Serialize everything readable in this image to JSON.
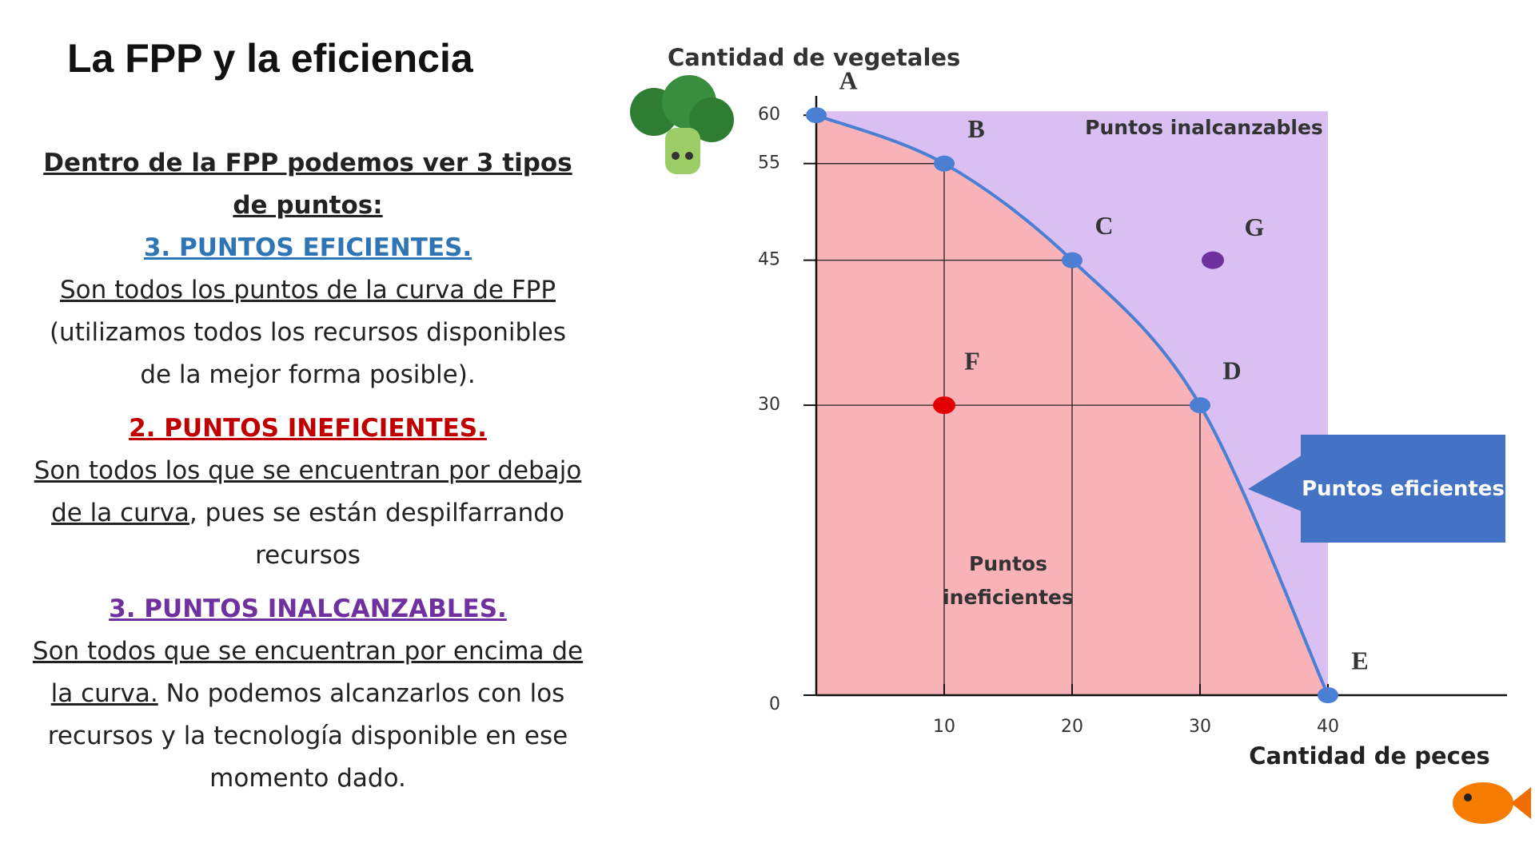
{
  "slide": {
    "title": "La FPP y la eficiencia",
    "heading": "Dentro de la FPP podemos ver 3 tipos de puntos:",
    "sections": [
      {
        "title": "3. PUNTOS EFICIENTES.",
        "color": "#2e75b6",
        "underlined": "Son todos los puntos de la curva de FPP",
        "text": " (utilizamos todos los recursos disponibles de la mejor forma posible)."
      },
      {
        "title": "2. PUNTOS INEFICIENTES.",
        "color": "#c00000",
        "underlined": "Son todos los que se encuentran por debajo de la curva",
        "text": ", pues se están despilfarrando recursos"
      },
      {
        "title": "3. PUNTOS INALCANZABLES.",
        "color": "#7030a0",
        "underlined": "Son todos que se encuentran por encima de la curva.",
        "text": " No podemos alcanzarlos con los recursos y la tecnología disponible en ese momento dado."
      }
    ]
  },
  "chart_data": {
    "type": "line",
    "y_label": "Cantidad de vegetales",
    "x_label": "Cantidad de peces",
    "x": [
      0,
      10,
      20,
      30,
      40
    ],
    "values": [
      60,
      55,
      45,
      30,
      0
    ],
    "point_labels": [
      "A",
      "B",
      "C",
      "D",
      "E"
    ],
    "color": "#4a7fd4",
    "extra_points": [
      {
        "label": "F",
        "x": 10,
        "y": 30,
        "color": "#e00000"
      },
      {
        "label": "G",
        "x": 31,
        "y": 45,
        "color": "#7030a0"
      }
    ],
    "unreachable_label": "Puntos inalcanzables",
    "inefficient_label": "Puntos ineficientes",
    "efficient_label": "Puntos eficientes",
    "xlim": [
      0,
      54
    ],
    "ylim": [
      0,
      62
    ],
    "xticks": [
      10,
      20,
      30,
      40
    ],
    "yticks": [
      0,
      30,
      45,
      55,
      60
    ]
  }
}
